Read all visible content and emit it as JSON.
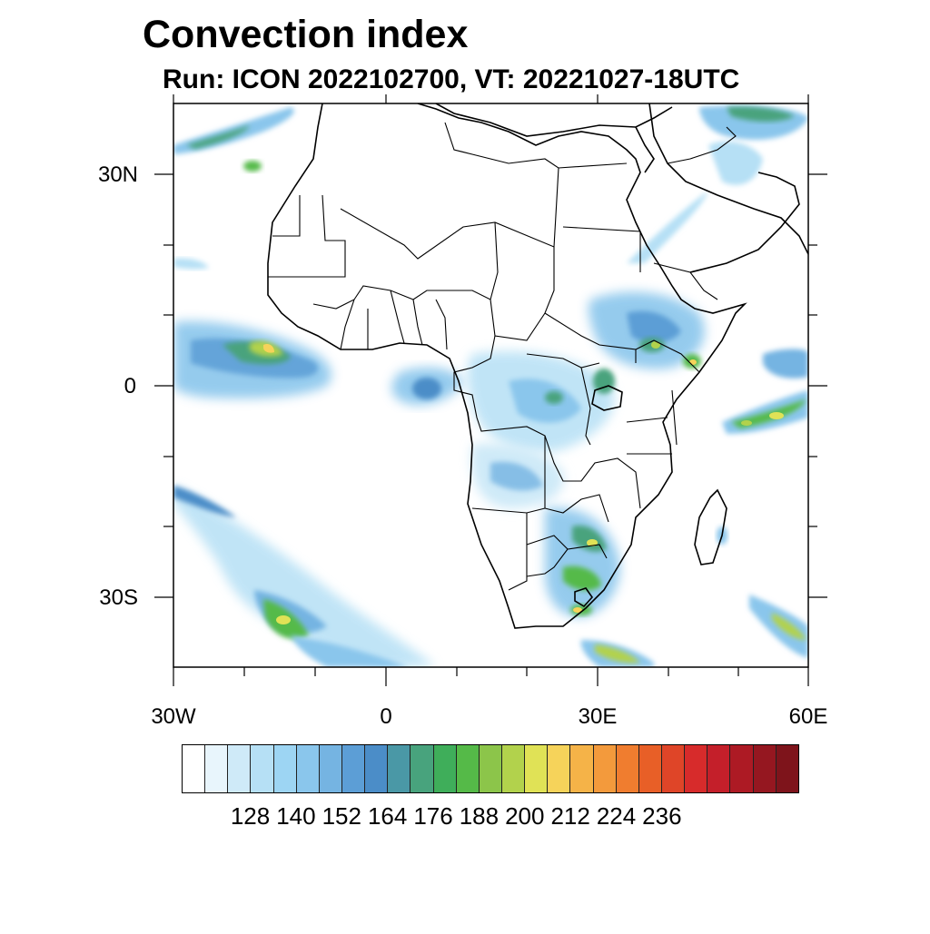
{
  "title": "Convection index",
  "subtitle": "Run: ICON 2022102700,  VT: 20221027-18UTC",
  "map": {
    "region": "Africa",
    "lat_labels": [
      "30N",
      "0",
      "30S"
    ],
    "lon_labels": [
      "30W",
      "0",
      "30E",
      "60E"
    ]
  },
  "colorbar": {
    "colors": [
      "#ffffff",
      "#e8f5fc",
      "#cfeaf8",
      "#b6e0f5",
      "#9dd5f3",
      "#8ac6ec",
      "#75b4e2",
      "#5c9ed6",
      "#4b8dc8",
      "#4a98a6",
      "#48a37d",
      "#3fae5a",
      "#55ba48",
      "#8cc54a",
      "#b2d24c",
      "#e0e256",
      "#f6d35a",
      "#f5b348",
      "#f39a3c",
      "#f07d2f",
      "#e85f27",
      "#df4528",
      "#d72b2b",
      "#c41f2a",
      "#ad1a24",
      "#951720",
      "#7e141b"
    ],
    "labels": [
      "128",
      "140",
      "152",
      "164",
      "176",
      "188",
      "200",
      "212",
      "224",
      "236"
    ]
  },
  "chart_data": {
    "type": "heatmap",
    "title": "Convection index",
    "subtitle": "Run: ICON 2022102700,  VT: 20221027-18UTC",
    "variable": "Convection index",
    "lon_range": [
      -30,
      60
    ],
    "lat_range": [
      -40,
      40
    ],
    "x_ticks": [
      "30W",
      "0",
      "30E",
      "60E"
    ],
    "y_ticks": [
      "30N",
      "0",
      "30S"
    ],
    "colorbar_ticks": [
      128,
      140,
      152,
      164,
      176,
      188,
      200,
      212,
      224,
      236
    ]
  }
}
